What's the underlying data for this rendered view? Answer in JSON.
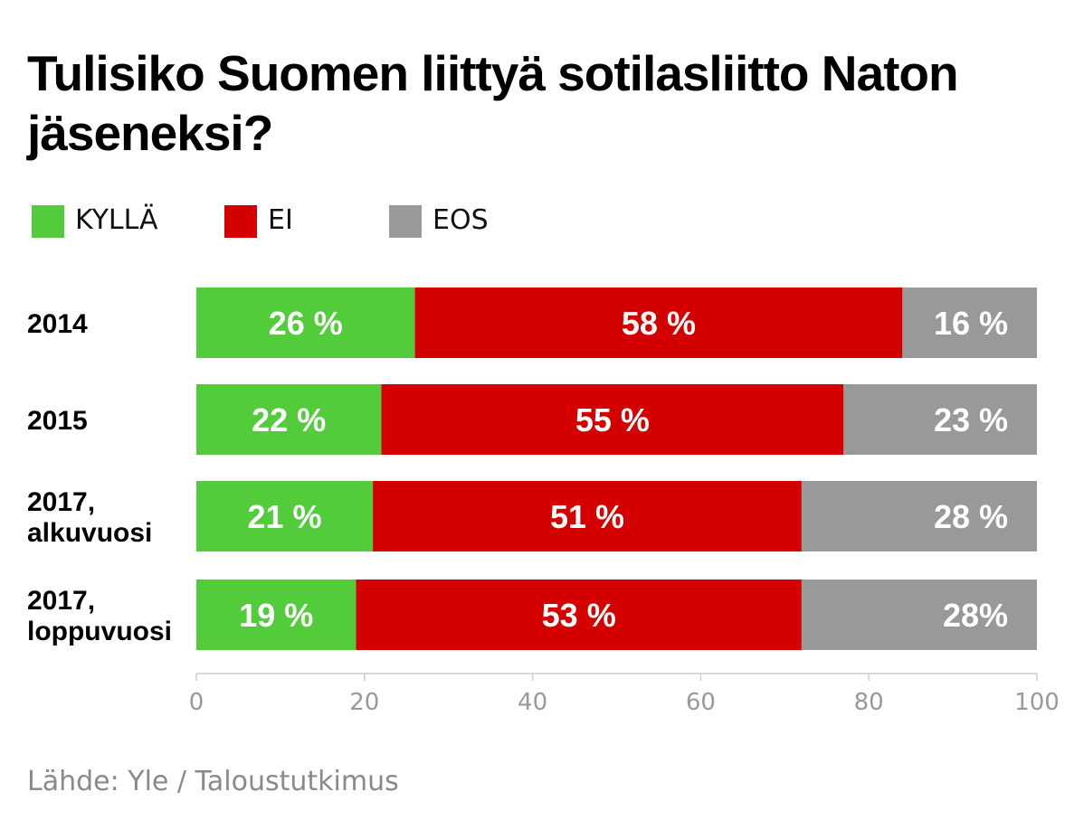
{
  "title": "Tulisiko Suomen liittyä sotilasliitto Naton jäseneksi?",
  "source": "Lähde: Yle / Taloustutkimus",
  "chart_data": {
    "type": "bar",
    "orientation": "horizontal",
    "stacked": true,
    "categories": [
      [
        "2014"
      ],
      [
        "2015"
      ],
      [
        "2017,",
        "alkuvuosi"
      ],
      [
        "2017,",
        "loppuvuosi"
      ]
    ],
    "series": [
      {
        "name": "KYLLÄ",
        "color": "#52cc3a",
        "values": [
          26,
          22,
          21,
          19
        ],
        "labels": [
          "26 %",
          "22 %",
          "21 %",
          "19 %"
        ]
      },
      {
        "name": "EI",
        "color": "#d40000",
        "values": [
          58,
          55,
          51,
          53
        ],
        "labels": [
          "58 %",
          "55 %",
          "51 %",
          "53 %"
        ]
      },
      {
        "name": "EOS",
        "color": "#999999",
        "values": [
          16,
          23,
          28,
          28
        ],
        "labels": [
          "16 %",
          "23 %",
          "28 %",
          "28%"
        ]
      }
    ],
    "xlim": [
      0,
      100
    ],
    "xticks": [
      0,
      20,
      40,
      60,
      80,
      100
    ],
    "legend_position": "top-left",
    "grid": false
  }
}
